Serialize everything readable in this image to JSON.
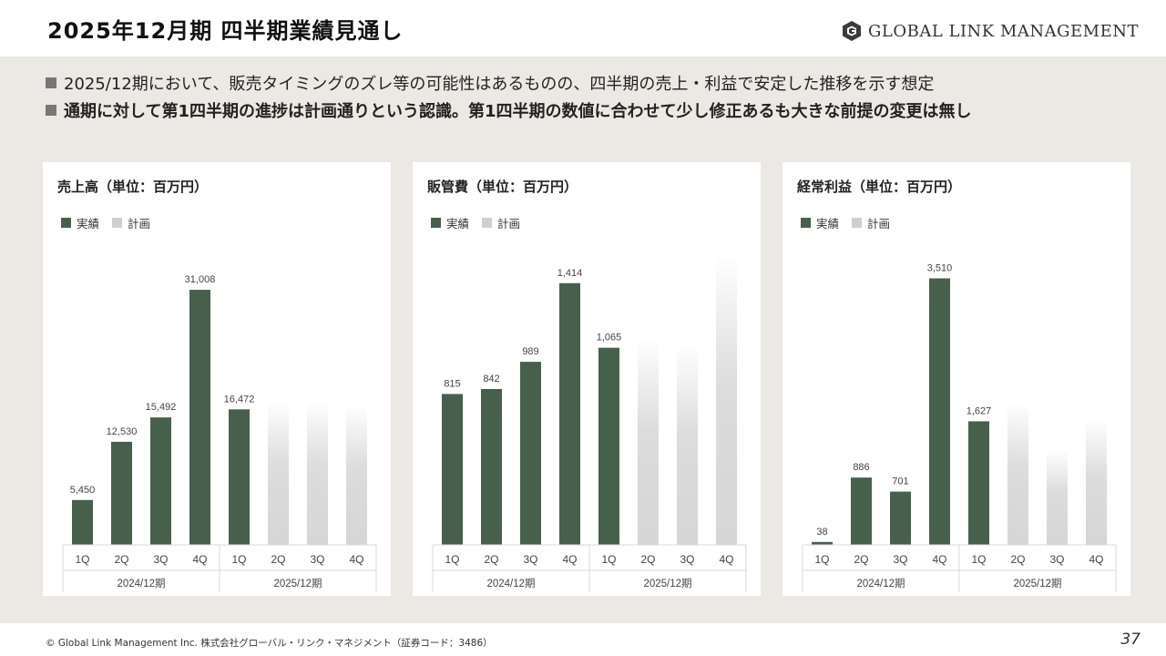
{
  "header": {
    "title": "2025年12月期 四半期業績見通し",
    "logo_text": "GLOBAL LINK MANAGEMENT",
    "logo_icon": "gl-logo-icon"
  },
  "bullets": [
    "2025/12期において、販売タイミングのズレ等の可能性はあるものの、四半期の売上・利益で安定した推移を示す想定",
    "通期に対して第1四半期の進捗は計画通りという認識。第1四半期の数値に合わせて少し修正あるも大きな前提の変更は無し"
  ],
  "legend": {
    "actual": "実績",
    "plan": "計画"
  },
  "colors": {
    "actual": "#46604c",
    "plan": "#d6d6d6",
    "background": "#ece9e4"
  },
  "chart_data": [
    {
      "type": "bar",
      "title": "売上高（単位：百万円）",
      "categories": [
        "1Q",
        "2Q",
        "3Q",
        "4Q",
        "1Q",
        "2Q",
        "3Q",
        "4Q"
      ],
      "groups": [
        "2024/12期",
        "2025/12期"
      ],
      "actual": [
        5450,
        12530,
        15492,
        31008,
        16472,
        null,
        null,
        null
      ],
      "actual_labels": [
        "5,450",
        "12,530",
        "15,492",
        "31,008",
        "16,472",
        "",
        "",
        ""
      ],
      "plan_approx": [
        null,
        null,
        null,
        null,
        null,
        17500,
        17500,
        17000
      ],
      "ylim": [
        0,
        36000
      ]
    },
    {
      "type": "bar",
      "title": "販管費（単位：百万円）",
      "categories": [
        "1Q",
        "2Q",
        "3Q",
        "4Q",
        "1Q",
        "2Q",
        "3Q",
        "4Q"
      ],
      "groups": [
        "2024/12期",
        "2025/12期"
      ],
      "actual": [
        815,
        842,
        989,
        1414,
        1065,
        null,
        null,
        null
      ],
      "actual_labels": [
        "815",
        "842",
        "989",
        "1,414",
        "1,065",
        "",
        "",
        ""
      ],
      "plan_approx": [
        null,
        null,
        null,
        null,
        null,
        1120,
        1080,
        1570
      ],
      "ylim": [
        0,
        1600
      ]
    },
    {
      "type": "bar",
      "title": "経常利益（単位：百万円）",
      "categories": [
        "1Q",
        "2Q",
        "3Q",
        "4Q",
        "1Q",
        "2Q",
        "3Q",
        "4Q"
      ],
      "groups": [
        "2024/12期",
        "2025/12期"
      ],
      "actual": [
        38,
        886,
        701,
        3510,
        1627,
        null,
        null,
        null
      ],
      "actual_labels": [
        "38",
        "886",
        "701",
        "3,510",
        "1,627",
        "",
        "",
        ""
      ],
      "plan_approx": [
        null,
        null,
        null,
        null,
        null,
        1870,
        1260,
        1650
      ],
      "ylim": [
        0,
        3900
      ]
    }
  ],
  "footer": "© Global Link Management Inc.  株式会社グローバル・リンク・マネジメント（証券コード：3486）",
  "page_number": "37"
}
